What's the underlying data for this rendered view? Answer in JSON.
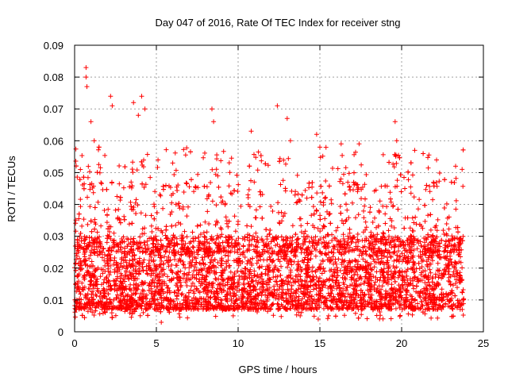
{
  "chart_data": {
    "type": "scatter",
    "title": "Day 047 of 2016, Rate Of TEC Index for receiver stng",
    "xlabel": "GPS time / hours",
    "ylabel": "ROTI / TECUs",
    "xlim": [
      0,
      25
    ],
    "ylim": [
      0,
      0.09
    ],
    "xticks": [
      0,
      5,
      10,
      15,
      20,
      25
    ],
    "xtick_labels": [
      "0",
      "5",
      "10",
      "15",
      "20",
      "25"
    ],
    "yticks": [
      0,
      0.01,
      0.02,
      0.03,
      0.04,
      0.05,
      0.06,
      0.07,
      0.08,
      0.09
    ],
    "ytick_labels": [
      "0",
      "0.01",
      "0.02",
      "0.03",
      "0.04",
      "0.05",
      "0.06",
      "0.07",
      "0.08",
      "0.09"
    ],
    "grid": true,
    "marker": "+",
    "color": "#ff0000",
    "x_data_range": [
      0,
      23.8
    ],
    "core_band": [
      0.007,
      0.03
    ],
    "series": [
      {
        "name": "ROTI",
        "notable_points": [
          {
            "x": 0.7,
            "y": 0.083
          },
          {
            "x": 0.7,
            "y": 0.08
          },
          {
            "x": 0.75,
            "y": 0.077
          },
          {
            "x": 1.0,
            "y": 0.066
          },
          {
            "x": 1.2,
            "y": 0.06
          },
          {
            "x": 2.2,
            "y": 0.074
          },
          {
            "x": 2.3,
            "y": 0.071
          },
          {
            "x": 3.6,
            "y": 0.072
          },
          {
            "x": 3.9,
            "y": 0.068
          },
          {
            "x": 4.1,
            "y": 0.074
          },
          {
            "x": 4.3,
            "y": 0.07
          },
          {
            "x": 8.4,
            "y": 0.07
          },
          {
            "x": 8.5,
            "y": 0.066
          },
          {
            "x": 12.4,
            "y": 0.071
          },
          {
            "x": 13.0,
            "y": 0.067
          },
          {
            "x": 13.2,
            "y": 0.06
          },
          {
            "x": 14.8,
            "y": 0.062
          },
          {
            "x": 15.0,
            "y": 0.058
          },
          {
            "x": 16.3,
            "y": 0.059
          },
          {
            "x": 17.4,
            "y": 0.059
          },
          {
            "x": 19.6,
            "y": 0.066
          },
          {
            "x": 19.7,
            "y": 0.06
          },
          {
            "x": 20.8,
            "y": 0.057
          },
          {
            "x": 23.3,
            "y": 0.052
          },
          {
            "x": 23.7,
            "y": 0.051
          },
          {
            "x": 6.0,
            "y": 0.053
          },
          {
            "x": 10.8,
            "y": 0.063
          },
          {
            "x": 4.2,
            "y": 0.006
          },
          {
            "x": 5.3,
            "y": 0.003
          },
          {
            "x": 14.9,
            "y": 0.004
          },
          {
            "x": 9.7,
            "y": 0.005
          },
          {
            "x": 0.1,
            "y": 0.008
          }
        ]
      }
    ]
  }
}
